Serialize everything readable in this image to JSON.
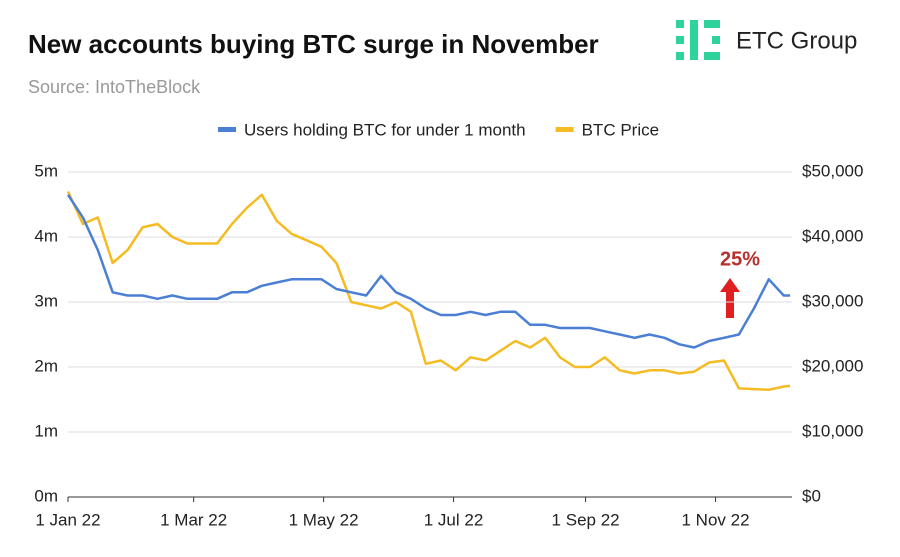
{
  "logo_text": "ETC Group",
  "chart_data": {
    "type": "line",
    "title": "New accounts buying BTC surge in November",
    "subtitle": "Source: IntoTheBlock",
    "annotation": "25%",
    "grid": true,
    "legend": "top",
    "x": [
      "2022-01-01",
      "2022-01-08",
      "2022-01-15",
      "2022-01-22",
      "2022-01-29",
      "2022-02-05",
      "2022-02-12",
      "2022-02-19",
      "2022-02-26",
      "2022-03-05",
      "2022-03-12",
      "2022-03-19",
      "2022-03-26",
      "2022-04-02",
      "2022-04-09",
      "2022-04-16",
      "2022-04-23",
      "2022-04-30",
      "2022-05-07",
      "2022-05-14",
      "2022-05-21",
      "2022-05-28",
      "2022-06-04",
      "2022-06-11",
      "2022-06-18",
      "2022-06-25",
      "2022-07-02",
      "2022-07-09",
      "2022-07-16",
      "2022-07-23",
      "2022-07-30",
      "2022-08-06",
      "2022-08-13",
      "2022-08-20",
      "2022-08-27",
      "2022-09-03",
      "2022-09-10",
      "2022-09-17",
      "2022-09-24",
      "2022-10-01",
      "2022-10-08",
      "2022-10-15",
      "2022-10-22",
      "2022-10-29",
      "2022-11-05",
      "2022-11-12",
      "2022-11-19",
      "2022-11-26",
      "2022-12-03",
      "2022-12-06"
    ],
    "xticks": [
      {
        "value": "2022-01-01",
        "label": "1 Jan 22"
      },
      {
        "value": "2022-03-01",
        "label": "1 Mar 22"
      },
      {
        "value": "2022-05-01",
        "label": "1 May 22"
      },
      {
        "value": "2022-07-01",
        "label": "1 Jul 22"
      },
      {
        "value": "2022-09-01",
        "label": "1 Sep 22"
      },
      {
        "value": "2022-11-01",
        "label": "1 Nov 22"
      }
    ],
    "ylim": [
      0,
      5
    ],
    "yticks": [
      {
        "value": 0,
        "label": "0m"
      },
      {
        "value": 1,
        "label": "1m"
      },
      {
        "value": 2,
        "label": "2m"
      },
      {
        "value": 3,
        "label": "3m"
      },
      {
        "value": 4,
        "label": "4m"
      },
      {
        "value": 5,
        "label": "5m"
      }
    ],
    "y2lim": [
      0,
      50000
    ],
    "y2ticks": [
      {
        "value": 0,
        "label": "$0"
      },
      {
        "value": 10000,
        "label": "$10,000"
      },
      {
        "value": 20000,
        "label": "$20,000"
      },
      {
        "value": 30000,
        "label": "$30,000"
      },
      {
        "value": 40000,
        "label": "$40,000"
      },
      {
        "value": 50000,
        "label": "$50,000"
      }
    ],
    "series": [
      {
        "name": "Users holding BTC for under 1 month",
        "color": "#4a7fd4",
        "values": [
          4.65,
          4.3,
          3.8,
          3.15,
          3.1,
          3.1,
          3.05,
          3.1,
          3.05,
          3.05,
          3.05,
          3.15,
          3.15,
          3.25,
          3.3,
          3.35,
          3.35,
          3.35,
          3.2,
          3.15,
          3.1,
          3.4,
          3.15,
          3.05,
          2.9,
          2.8,
          2.8,
          2.85,
          2.8,
          2.85,
          2.85,
          2.65,
          2.65,
          2.6,
          2.6,
          2.6,
          2.55,
          2.5,
          2.45,
          2.5,
          2.45,
          2.35,
          2.3,
          2.4,
          2.45,
          2.5,
          2.9,
          3.35,
          3.1,
          3.1
        ]
      },
      {
        "name": "BTC Price",
        "color": "#f4bb22",
        "axis": "y2",
        "values": [
          47000,
          42000,
          43000,
          36000,
          38000,
          41500,
          42000,
          40000,
          39000,
          39000,
          39000,
          42000,
          44500,
          46500,
          42500,
          40500,
          39500,
          38500,
          36000,
          30000,
          29500,
          29000,
          30000,
          28500,
          20500,
          21000,
          19500,
          21500,
          21000,
          22500,
          24000,
          23000,
          24500,
          21500,
          20000,
          20000,
          21500,
          19500,
          19000,
          19500,
          19500,
          19000,
          19300,
          20700,
          21000,
          16700,
          16600,
          16500,
          17000,
          17100
        ]
      }
    ]
  }
}
